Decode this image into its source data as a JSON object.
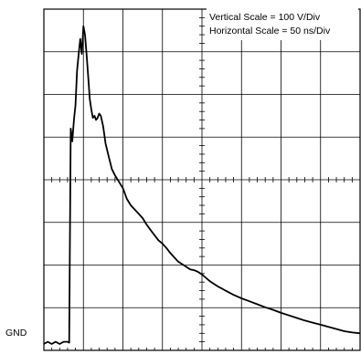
{
  "chart_data": {
    "type": "line",
    "title": "",
    "annotations": [
      "Vertical Scale = 100 V/Div",
      "Horizontal Scale = 50 ns/Div"
    ],
    "ground_label": "GND",
    "grid": {
      "enabled": true,
      "x_divisions": 8,
      "y_divisions": 8,
      "minor_ticks_per_division": 5
    },
    "xlabel": "",
    "ylabel": "",
    "xlim": [
      0,
      400
    ],
    "ylim": [
      0,
      800
    ],
    "series": [
      {
        "x": [
          0,
          5,
          10,
          15,
          20,
          25,
          30,
          32,
          34,
          36,
          38,
          40,
          42,
          44,
          46,
          48,
          50,
          52,
          54,
          56,
          58,
          60,
          62,
          64,
          66,
          68,
          70,
          72,
          75,
          78,
          82,
          86,
          90,
          95,
          100,
          105,
          110,
          115,
          120,
          125,
          130,
          135,
          140,
          145,
          150,
          155,
          160,
          165,
          170,
          175,
          180,
          185,
          190,
          195,
          200,
          205,
          210,
          215,
          220,
          225,
          230,
          235,
          240,
          250,
          260,
          270,
          280,
          290,
          300,
          310,
          320,
          330,
          340,
          350,
          360,
          370,
          380,
          390,
          400
        ],
        "y": [
          15,
          20,
          15,
          20,
          15,
          20,
          20,
          18,
          520,
          490,
          540,
          575,
          655,
          695,
          730,
          695,
          760,
          740,
          695,
          645,
          590,
          565,
          545,
          550,
          540,
          545,
          555,
          550,
          525,
          485,
          455,
          425,
          410,
          395,
          380,
          355,
          340,
          330,
          320,
          310,
          295,
          282,
          270,
          258,
          250,
          240,
          228,
          218,
          208,
          202,
          196,
          190,
          188,
          184,
          178,
          170,
          162,
          156,
          150,
          145,
          140,
          135,
          130,
          122,
          115,
          108,
          101,
          95,
          88,
          82,
          76,
          70,
          65,
          60,
          55,
          50,
          45,
          42,
          40
        ]
      }
    ]
  }
}
